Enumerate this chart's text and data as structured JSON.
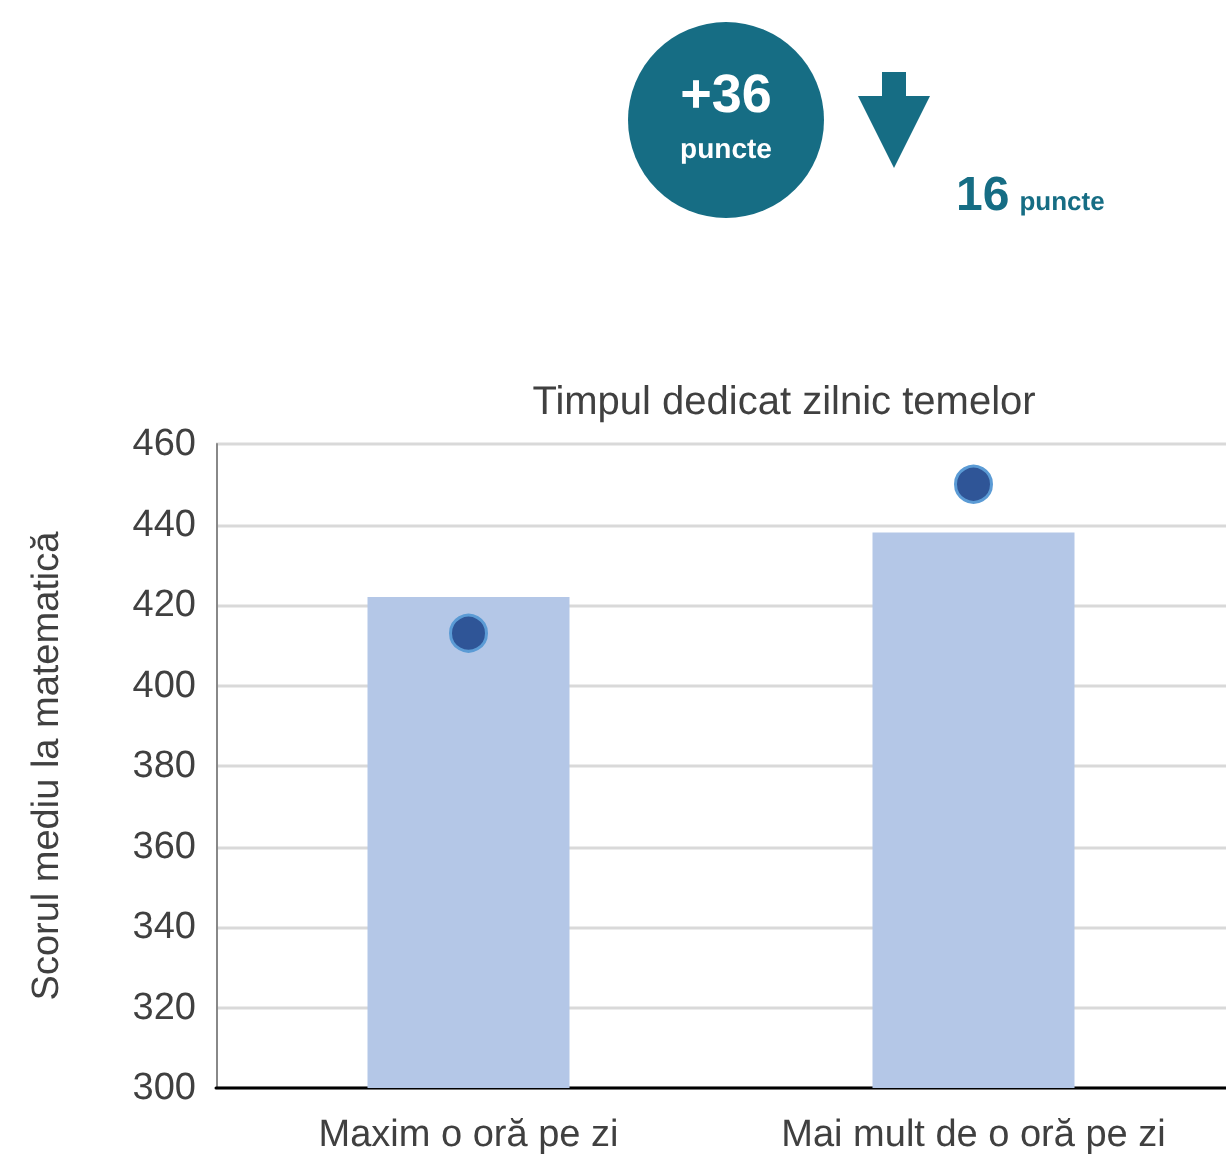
{
  "chart_data": {
    "type": "bar",
    "title": "Timpul dedicat zilnic temelor",
    "ylabel": "Scorul mediu la matematică",
    "categories": [
      "Maxim o oră pe zi",
      "Mai mult de o oră pe zi"
    ],
    "series": [
      {
        "color": "#b4c7e7",
        "values": [
          422,
          438
        ]
      },
      {
        "type": "scatter",
        "color": "#2f5597",
        "x": [
          "Maxim o oră pe zi",
          "Mai mult de o oră pe zi"
        ],
        "values": [
          413,
          450
        ]
      }
    ],
    "ylim": [
      300,
      460
    ],
    "yticks": [
      300,
      320,
      340,
      360,
      380,
      400,
      420,
      440,
      460
    ],
    "grid": "y",
    "marker": "circle",
    "annotations": [
      "+36 puncte",
      "16 puncte"
    ]
  }
}
